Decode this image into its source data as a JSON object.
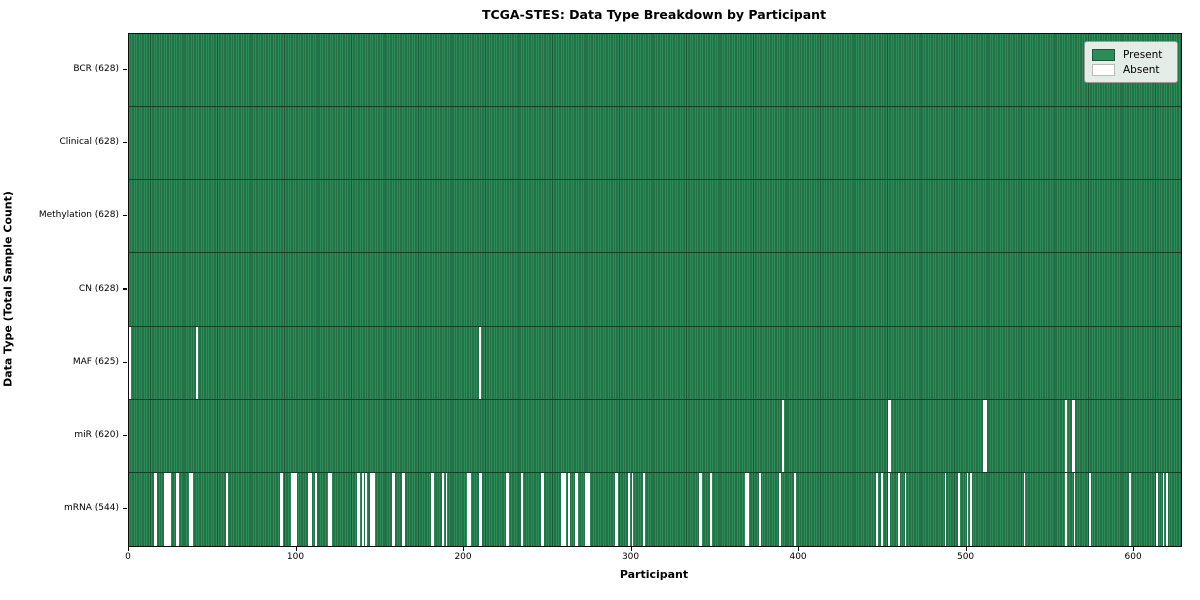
{
  "figure": {
    "title": "TCGA-STES: Data Type Breakdown by Participant",
    "xlabel": "Participant",
    "ylabel": "Data Type (Total Sample Count)"
  },
  "legend": {
    "items": [
      {
        "name": "present",
        "label": "Present",
        "color": "#2e8b57",
        "edge": "#1b5a39"
      },
      {
        "name": "absent",
        "label": "Absent",
        "color": "#ffffff",
        "edge": "#bbbbbb"
      }
    ]
  },
  "chart_data": {
    "type": "heatmap",
    "title": "TCGA-STES: Data Type Breakdown by Participant",
    "xlabel": "Participant",
    "ylabel": "Data Type (Total Sample Count)",
    "legend": [
      "Present",
      "Absent"
    ],
    "legend_position": "upper right",
    "grid": false,
    "n_participants": 628,
    "xlim": [
      0,
      628
    ],
    "x_ticks": [
      0,
      100,
      200,
      300,
      400,
      500,
      600
    ],
    "colors": {
      "present": "#2e8b57",
      "present_edge": "#1b5a39",
      "absent": "#ffffff"
    },
    "rows": [
      {
        "name": "BCR",
        "label": "BCR (628)",
        "present_count": 628,
        "absent_participants": []
      },
      {
        "name": "Clinical",
        "label": "Clinical (628)",
        "present_count": 628,
        "absent_participants": []
      },
      {
        "name": "Methylation",
        "label": "Methylation (628)",
        "present_count": 628,
        "absent_participants": []
      },
      {
        "name": "CN",
        "label": "CN (628)",
        "present_count": 628,
        "absent_participants": []
      },
      {
        "name": "MAF",
        "label": "MAF (625)",
        "present_count": 625,
        "absent_participants": [
          0,
          40,
          209
        ]
      },
      {
        "name": "miR",
        "label": "miR (620)",
        "present_count": 620,
        "absent_participants": [
          390,
          453,
          454,
          510,
          511,
          559,
          563,
          564
        ]
      },
      {
        "name": "mRNA",
        "label": "mRNA (544)",
        "present_count": 544,
        "absent_participants": [
          15,
          16,
          21,
          22,
          23,
          24,
          28,
          29,
          36,
          37,
          58,
          90,
          91,
          97,
          98,
          99,
          107,
          108,
          111,
          119,
          120,
          136,
          137,
          139,
          141,
          144,
          145,
          146,
          157,
          158,
          163,
          164,
          180,
          181,
          187,
          189,
          202,
          203,
          209,
          210,
          225,
          226,
          234,
          246,
          247,
          258,
          259,
          260,
          262,
          266,
          267,
          272,
          273,
          274,
          290,
          291,
          298,
          300,
          307,
          340,
          341,
          347,
          368,
          369,
          376,
          388,
          397,
          446,
          449,
          453,
          459,
          463,
          487,
          495,
          500,
          502,
          534,
          559,
          564,
          573,
          597,
          613,
          617,
          619
        ]
      }
    ]
  }
}
